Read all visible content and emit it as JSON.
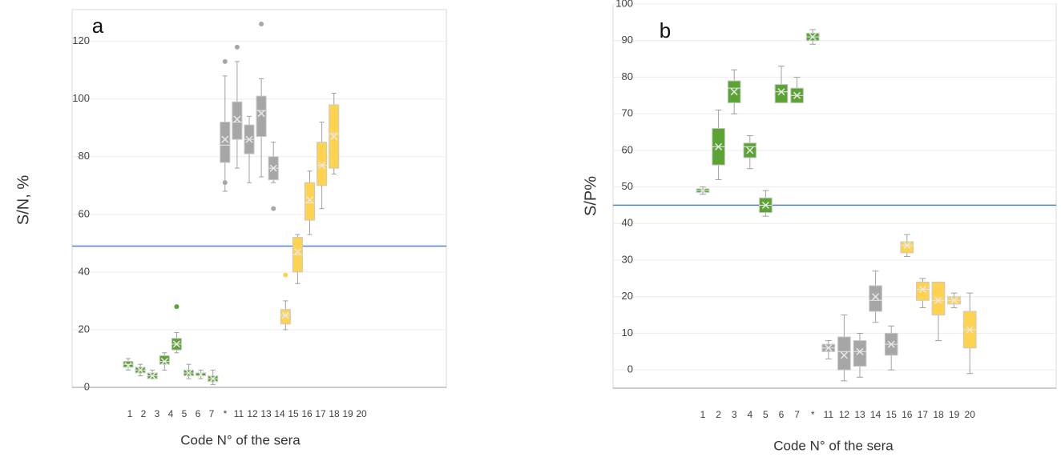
{
  "chart_data": [
    {
      "type": "box",
      "label": "a",
      "y_label": "S/N, %",
      "x_label": "Code N° of the sera",
      "categories": [
        "1",
        "2",
        "3",
        "4",
        "5",
        "6",
        "7",
        "*",
        "11",
        "12",
        "13",
        "14",
        "15",
        "16",
        "17",
        "18",
        "19",
        "20"
      ],
      "boxes": [
        {
          "color": "#5ba433",
          "min": 6,
          "q1": 7,
          "median": 8,
          "q3": 9,
          "max": 10,
          "mean": 7.5
        },
        {
          "color": "#5ba433",
          "min": 4,
          "q1": 5,
          "median": 6,
          "q3": 7,
          "max": 8,
          "mean": 6
        },
        {
          "color": "#5ba433",
          "min": 3,
          "q1": 3,
          "median": 4,
          "q3": 5,
          "max": 6,
          "mean": 4
        },
        {
          "color": "#5ba433",
          "min": 6,
          "q1": 8,
          "median": 9,
          "q3": 11,
          "max": 12,
          "mean": 9
        },
        {
          "color": "#5ba433",
          "min": 12,
          "q1": 13,
          "median": 15,
          "q3": 17,
          "max": 19,
          "mean": 15,
          "outliers": [
            28
          ]
        },
        {
          "color": "#5ba433",
          "min": 3,
          "q1": 4,
          "median": 5,
          "q3": 6,
          "max": 8,
          "mean": 5
        },
        {
          "color": "#5ba433",
          "min": 3,
          "q1": 4,
          "median": 4,
          "q3": 5,
          "max": 6,
          "mean": 4.5
        },
        {
          "color": "#5ba433",
          "min": 1,
          "q1": 2,
          "median": 3,
          "q3": 4,
          "max": 6,
          "mean": 3
        },
        {
          "color": "#a6a6a6",
          "min": 68,
          "q1": 78,
          "median": 84,
          "q3": 92,
          "max": 108,
          "mean": 86,
          "outliers": [
            113,
            71
          ]
        },
        {
          "color": "#a6a6a6",
          "min": 76,
          "q1": 86,
          "median": 92,
          "q3": 99,
          "max": 113,
          "mean": 93,
          "outliers": [
            118
          ]
        },
        {
          "color": "#a6a6a6",
          "min": 71,
          "q1": 81,
          "median": 86,
          "q3": 91,
          "max": 94,
          "mean": 86
        },
        {
          "color": "#a6a6a6",
          "min": 73,
          "q1": 87,
          "median": 96,
          "q3": 101,
          "max": 107,
          "mean": 95,
          "outliers": [
            126
          ]
        },
        {
          "color": "#a6a6a6",
          "min": 71,
          "q1": 72,
          "median": 76,
          "q3": 80,
          "max": 85,
          "mean": 76,
          "outliers": [
            62
          ]
        },
        {
          "color": "#ffd24f",
          "min": 20,
          "q1": 22,
          "median": 25,
          "q3": 27,
          "max": 30,
          "mean": 25,
          "outliers": [
            39
          ]
        },
        {
          "color": "#ffd24f",
          "min": 36,
          "q1": 40,
          "median": 46,
          "q3": 52,
          "max": 53,
          "mean": 47
        },
        {
          "color": "#ffd24f",
          "min": 53,
          "q1": 58,
          "median": 64,
          "q3": 71,
          "max": 75,
          "mean": 65
        },
        {
          "color": "#ffd24f",
          "min": 62,
          "q1": 70,
          "median": 77,
          "q3": 85,
          "max": 92,
          "mean": 77
        },
        {
          "color": "#ffd24f",
          "min": 74,
          "q1": 76,
          "median": 88,
          "q3": 98,
          "max": 102,
          "mean": 87
        }
      ],
      "ylim": [
        0,
        131
      ],
      "yticks": [
        0,
        20,
        40,
        60,
        80,
        100,
        120
      ],
      "grid": true,
      "reference_line": 49,
      "reference_color": "#4a86c8"
    },
    {
      "type": "box",
      "label": "b",
      "y_label": "S/P%",
      "x_label": "Code N° of the sera",
      "categories": [
        "1",
        "2",
        "3",
        "4",
        "5",
        "6",
        "7",
        "*",
        "11",
        "12",
        "13",
        "14",
        "15",
        "16",
        "17",
        "18",
        "19",
        "20"
      ],
      "boxes": [
        {
          "color": "#5ba433",
          "min": 48,
          "q1": 48.5,
          "median": 49,
          "q3": 49.5,
          "max": 50,
          "mean": 49
        },
        {
          "color": "#5ba433",
          "min": 52,
          "q1": 56,
          "median": 61,
          "q3": 66,
          "max": 71,
          "mean": 61
        },
        {
          "color": "#5ba433",
          "min": 70,
          "q1": 73,
          "median": 77,
          "q3": 79,
          "max": 82,
          "mean": 76
        },
        {
          "color": "#5ba433",
          "min": 55,
          "q1": 58,
          "median": 61,
          "q3": 62,
          "max": 64,
          "mean": 60
        },
        {
          "color": "#5ba433",
          "min": 42,
          "q1": 43,
          "median": 45,
          "q3": 47,
          "max": 49,
          "mean": 45
        },
        {
          "color": "#5ba433",
          "min": 73,
          "q1": 73,
          "median": 76,
          "q3": 78,
          "max": 83,
          "mean": 76
        },
        {
          "color": "#5ba433",
          "min": 73,
          "q1": 73,
          "median": 75,
          "q3": 77,
          "max": 80,
          "mean": 75
        },
        {
          "color": "#5ba433",
          "min": 89,
          "q1": 90,
          "median": 91,
          "q3": 92,
          "max": 93,
          "mean": 91
        },
        {
          "color": "#a6a6a6",
          "min": 3,
          "q1": 5,
          "median": 6,
          "q3": 7,
          "max": 8,
          "mean": 6
        },
        {
          "color": "#a6a6a6",
          "min": -3,
          "q1": 0,
          "median": 5,
          "q3": 9,
          "max": 15,
          "mean": 4
        },
        {
          "color": "#a6a6a6",
          "min": -2,
          "q1": 1,
          "median": 5,
          "q3": 8,
          "max": 10,
          "mean": 5
        },
        {
          "color": "#a6a6a6",
          "min": 13,
          "q1": 16,
          "median": 19,
          "q3": 23,
          "max": 27,
          "mean": 20
        },
        {
          "color": "#a6a6a6",
          "min": 0,
          "q1": 4,
          "median": 7,
          "q3": 10,
          "max": 12,
          "mean": 7
        },
        {
          "color": "#ffd24f",
          "min": 31,
          "q1": 32,
          "median": 34,
          "q3": 35,
          "max": 37,
          "mean": 34
        },
        {
          "color": "#ffd24f",
          "min": 17,
          "q1": 19,
          "median": 22,
          "q3": 24,
          "max": 25,
          "mean": 22
        },
        {
          "color": "#ffd24f",
          "min": 8,
          "q1": 15,
          "median": 19,
          "q3": 24,
          "max": 24,
          "mean": 19
        },
        {
          "color": "#ffd24f",
          "min": 17,
          "q1": 18,
          "median": 19,
          "q3": 20,
          "max": 21,
          "mean": 19
        },
        {
          "color": "#ffd24f",
          "min": -1,
          "q1": 6,
          "median": 11,
          "q3": 16,
          "max": 21,
          "mean": 11
        }
      ],
      "ylim": [
        -5,
        100
      ],
      "yticks": [
        0,
        10,
        20,
        30,
        40,
        50,
        60,
        70,
        80,
        90,
        100
      ],
      "grid": true,
      "reference_line": 45,
      "reference_color": "#4a86c8"
    }
  ]
}
